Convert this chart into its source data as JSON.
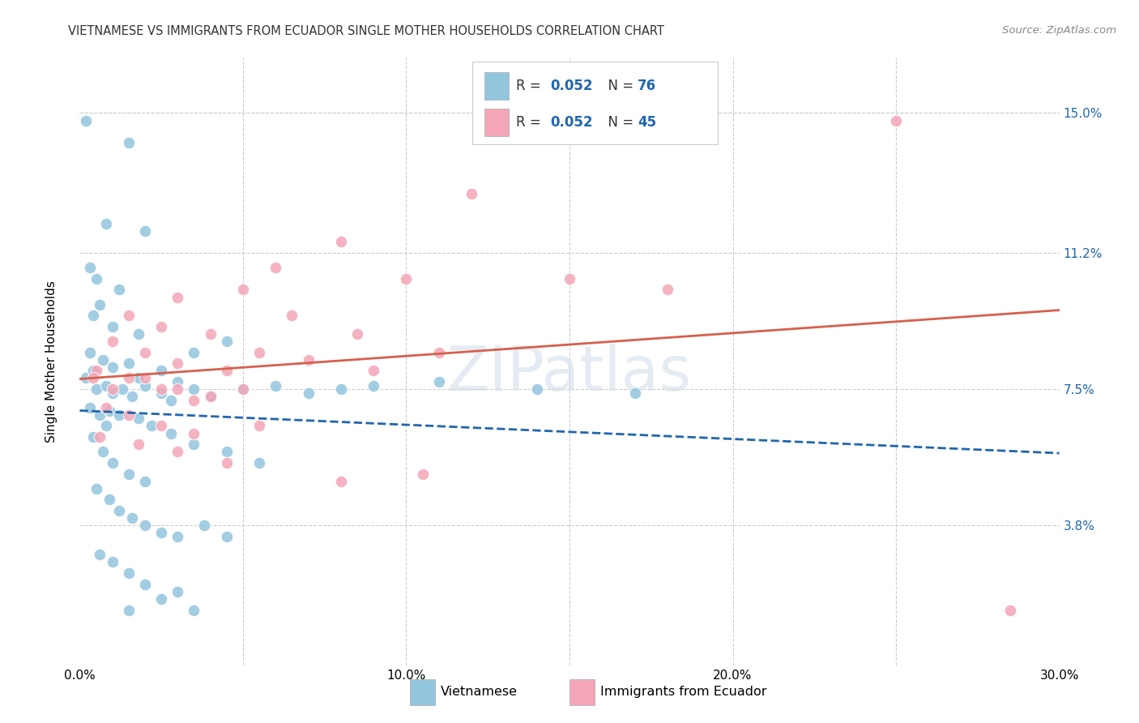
{
  "title": "VIETNAMESE VS IMMIGRANTS FROM ECUADOR SINGLE MOTHER HOUSEHOLDS CORRELATION CHART",
  "source": "Source: ZipAtlas.com",
  "ylabel": "Single Mother Households",
  "xlim": [
    0.0,
    30.0
  ],
  "ylim": [
    0.0,
    16.5
  ],
  "watermark": "ZIPatlas",
  "viet_color": "#92c5de",
  "ecuador_color": "#f4a6b8",
  "viet_line_color": "#2166ac",
  "ecuador_line_color": "#d6604d",
  "background_color": "#ffffff",
  "grid_color": "#cccccc",
  "viet_scatter": [
    [
      0.2,
      14.8
    ],
    [
      1.5,
      14.2
    ],
    [
      0.8,
      12.0
    ],
    [
      2.0,
      11.8
    ],
    [
      0.5,
      10.5
    ],
    [
      1.2,
      10.2
    ],
    [
      0.3,
      10.8
    ],
    [
      0.4,
      9.5
    ],
    [
      1.0,
      9.2
    ],
    [
      1.8,
      9.0
    ],
    [
      0.6,
      9.8
    ],
    [
      0.3,
      8.5
    ],
    [
      0.7,
      8.3
    ],
    [
      1.5,
      8.2
    ],
    [
      2.5,
      8.0
    ],
    [
      3.5,
      8.5
    ],
    [
      4.5,
      8.8
    ],
    [
      0.2,
      7.8
    ],
    [
      0.5,
      7.5
    ],
    [
      0.8,
      7.6
    ],
    [
      1.0,
      7.4
    ],
    [
      1.3,
      7.5
    ],
    [
      1.6,
      7.3
    ],
    [
      2.0,
      7.6
    ],
    [
      2.5,
      7.4
    ],
    [
      3.0,
      7.7
    ],
    [
      3.5,
      7.5
    ],
    [
      4.0,
      7.3
    ],
    [
      5.0,
      7.5
    ],
    [
      6.0,
      7.6
    ],
    [
      7.0,
      7.4
    ],
    [
      8.0,
      7.5
    ],
    [
      9.0,
      7.6
    ],
    [
      11.0,
      7.7
    ],
    [
      14.0,
      7.5
    ],
    [
      17.0,
      7.4
    ],
    [
      0.3,
      7.0
    ],
    [
      0.6,
      6.8
    ],
    [
      0.9,
      6.9
    ],
    [
      1.2,
      6.8
    ],
    [
      1.8,
      6.7
    ],
    [
      2.2,
      6.5
    ],
    [
      2.8,
      6.3
    ],
    [
      3.5,
      6.0
    ],
    [
      4.5,
      5.8
    ],
    [
      5.5,
      5.5
    ],
    [
      0.4,
      6.2
    ],
    [
      0.7,
      5.8
    ],
    [
      1.0,
      5.5
    ],
    [
      1.5,
      5.2
    ],
    [
      2.0,
      5.0
    ],
    [
      0.5,
      4.8
    ],
    [
      0.9,
      4.5
    ],
    [
      1.2,
      4.2
    ],
    [
      1.6,
      4.0
    ],
    [
      2.0,
      3.8
    ],
    [
      2.5,
      3.6
    ],
    [
      3.0,
      3.5
    ],
    [
      3.8,
      3.8
    ],
    [
      4.5,
      3.5
    ],
    [
      0.6,
      3.0
    ],
    [
      1.0,
      2.8
    ],
    [
      1.5,
      2.5
    ],
    [
      2.0,
      2.2
    ],
    [
      3.0,
      2.0
    ],
    [
      1.5,
      1.5
    ],
    [
      2.5,
      1.8
    ],
    [
      3.5,
      1.5
    ],
    [
      0.8,
      6.5
    ],
    [
      1.8,
      7.8
    ],
    [
      2.8,
      7.2
    ],
    [
      0.4,
      8.0
    ],
    [
      1.0,
      8.1
    ]
  ],
  "ecuador_scatter": [
    [
      25.0,
      14.8
    ],
    [
      12.0,
      12.8
    ],
    [
      8.0,
      11.5
    ],
    [
      6.0,
      10.8
    ],
    [
      15.0,
      10.5
    ],
    [
      18.0,
      10.2
    ],
    [
      3.0,
      10.0
    ],
    [
      5.0,
      10.2
    ],
    [
      10.0,
      10.5
    ],
    [
      1.5,
      9.5
    ],
    [
      2.5,
      9.2
    ],
    [
      4.0,
      9.0
    ],
    [
      6.5,
      9.5
    ],
    [
      8.5,
      9.0
    ],
    [
      1.0,
      8.8
    ],
    [
      2.0,
      8.5
    ],
    [
      3.0,
      8.2
    ],
    [
      4.5,
      8.0
    ],
    [
      5.5,
      8.5
    ],
    [
      7.0,
      8.3
    ],
    [
      9.0,
      8.0
    ],
    [
      11.0,
      8.5
    ],
    [
      0.5,
      8.0
    ],
    [
      1.5,
      7.8
    ],
    [
      2.5,
      7.5
    ],
    [
      3.5,
      7.2
    ],
    [
      5.0,
      7.5
    ],
    [
      0.4,
      7.8
    ],
    [
      1.0,
      7.5
    ],
    [
      2.0,
      7.8
    ],
    [
      3.0,
      7.5
    ],
    [
      4.0,
      7.3
    ],
    [
      0.8,
      7.0
    ],
    [
      1.5,
      6.8
    ],
    [
      2.5,
      6.5
    ],
    [
      3.5,
      6.3
    ],
    [
      5.5,
      6.5
    ],
    [
      0.6,
      6.2
    ],
    [
      1.8,
      6.0
    ],
    [
      3.0,
      5.8
    ],
    [
      4.5,
      5.5
    ],
    [
      8.0,
      5.0
    ],
    [
      10.5,
      5.2
    ],
    [
      28.5,
      1.5
    ]
  ]
}
